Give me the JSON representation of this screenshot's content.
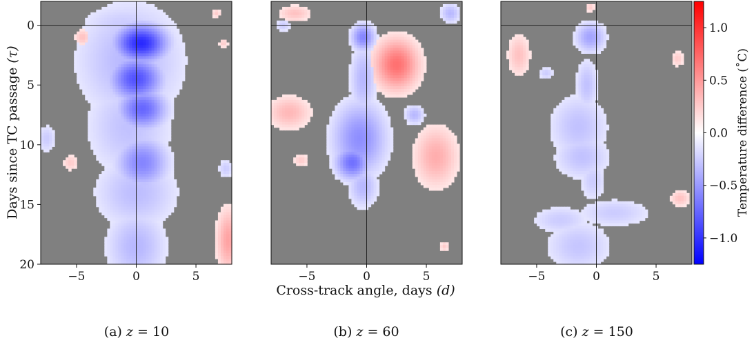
{
  "figure": {
    "shared_xlabel": "Cross-track angle, days",
    "shared_xlabel_sym": "(d)",
    "ylabel": "Days since TC passage",
    "ylabel_sym": "(τ)",
    "colorbar_label": "Temperature difference (˚C)",
    "masked_color": "#808080",
    "positive_color": "#ff0000",
    "negative_color": "#0000ff"
  },
  "captions": [
    {
      "prefix": "(a) ",
      "var": "z",
      "eq": " = 10"
    },
    {
      "prefix": "(b) ",
      "var": "z",
      "eq": " = 60"
    },
    {
      "prefix": "(c) ",
      "var": "z",
      "eq": " = 150"
    }
  ],
  "chart_data": [
    {
      "type": "heatmap",
      "panel": "(a) z = 10",
      "xlim": [
        -8,
        8
      ],
      "ylim": [
        20,
        -2
      ],
      "xticks": [
        -5,
        0,
        5
      ],
      "yticks": [
        0,
        5,
        10,
        15,
        20
      ],
      "crosshair": {
        "x": 0,
        "y": 0
      },
      "blobs": [
        {
          "x": -1,
          "y": 0,
          "sx": 2.8,
          "sy": 1.4,
          "v": -0.25
        },
        {
          "x": 0.4,
          "y": 1.5,
          "sx": 1.5,
          "sy": 1.1,
          "v": -1.05
        },
        {
          "x": 0,
          "y": 4.5,
          "sx": 1.5,
          "sy": 1.3,
          "v": -0.85
        },
        {
          "x": 0.5,
          "y": 7,
          "sx": 1.4,
          "sy": 1.2,
          "v": -0.75
        },
        {
          "x": -0.5,
          "y": 3,
          "sx": 3.2,
          "sy": 3.5,
          "v": -0.35
        },
        {
          "x": -0.6,
          "y": 8.5,
          "sx": 2.6,
          "sy": 3,
          "v": -0.3
        },
        {
          "x": 0.5,
          "y": 11.5,
          "sx": 1.5,
          "sy": 1.5,
          "v": -0.6
        },
        {
          "x": 0,
          "y": 14,
          "sx": 2.5,
          "sy": 2.2,
          "v": -0.32
        },
        {
          "x": 0,
          "y": 18.5,
          "sx": 1.8,
          "sy": 2.2,
          "v": -0.35
        },
        {
          "x": -4.5,
          "y": 1,
          "sx": 0.5,
          "sy": 0.5,
          "v": 0.3
        },
        {
          "x": -7.5,
          "y": 9.5,
          "sx": 0.6,
          "sy": 0.9,
          "v": -0.25
        },
        {
          "x": -5.5,
          "y": 11.5,
          "sx": 0.5,
          "sy": 0.5,
          "v": 0.25
        },
        {
          "x": 7.7,
          "y": 18,
          "sx": 0.7,
          "sy": 1.9,
          "v": 0.45
        },
        {
          "x": 7.5,
          "y": 12,
          "sx": 0.5,
          "sy": 0.6,
          "v": -0.25
        },
        {
          "x": 7.3,
          "y": 1.5,
          "sx": 0.3,
          "sy": 0.3,
          "v": 0.25
        },
        {
          "x": 6.7,
          "y": -1,
          "sx": 0.3,
          "sy": 0.3,
          "v": 0.25
        }
      ]
    },
    {
      "type": "heatmap",
      "panel": "(b) z = 60",
      "xlim": [
        -8,
        8
      ],
      "ylim": [
        20,
        -2
      ],
      "xticks": [
        -5,
        0,
        5
      ],
      "yticks": [
        0,
        5,
        10,
        15,
        20
      ],
      "crosshair": {
        "x": 0,
        "y": 0
      },
      "blobs": [
        {
          "x": -0.3,
          "y": 1,
          "sx": 0.7,
          "sy": 0.8,
          "v": -0.6
        },
        {
          "x": -0.3,
          "y": 4.5,
          "sx": 0.8,
          "sy": 2.2,
          "v": -0.35
        },
        {
          "x": -0.6,
          "y": 9.5,
          "sx": 1.6,
          "sy": 2.2,
          "v": -0.55
        },
        {
          "x": -1.2,
          "y": 11.5,
          "sx": 1,
          "sy": 1,
          "v": -0.7
        },
        {
          "x": -0.3,
          "y": 13.5,
          "sx": 0.9,
          "sy": 1.3,
          "v": -0.35
        },
        {
          "x": 2.5,
          "y": 3.3,
          "sx": 1.3,
          "sy": 1.5,
          "v": 0.7
        },
        {
          "x": -6,
          "y": -1,
          "sx": 1,
          "sy": 0.5,
          "v": 0.3
        },
        {
          "x": -7,
          "y": 0,
          "sx": 0.5,
          "sy": 0.4,
          "v": -0.25
        },
        {
          "x": -6.5,
          "y": 7.3,
          "sx": 1.3,
          "sy": 1,
          "v": 0.35
        },
        {
          "x": -5.5,
          "y": 11.3,
          "sx": 0.5,
          "sy": 0.4,
          "v": 0.25
        },
        {
          "x": 4,
          "y": 7.5,
          "sx": 0.6,
          "sy": 0.6,
          "v": -0.35
        },
        {
          "x": 5.8,
          "y": 11,
          "sx": 1.3,
          "sy": 1.8,
          "v": 0.4
        },
        {
          "x": 7,
          "y": -1,
          "sx": 0.6,
          "sy": 0.6,
          "v": -0.35
        },
        {
          "x": 6.5,
          "y": 18.5,
          "sx": 0.3,
          "sy": 0.3,
          "v": 0.25
        }
      ]
    },
    {
      "type": "heatmap",
      "panel": "(c) z = 150",
      "xlim": [
        -8,
        8
      ],
      "ylim": [
        20,
        -2
      ],
      "xticks": [
        -5,
        0,
        5
      ],
      "yticks": [
        0,
        5,
        10,
        15,
        20
      ],
      "crosshair": {
        "x": 0,
        "y": 0
      },
      "blobs": [
        {
          "x": -0.5,
          "y": 1,
          "sx": 0.9,
          "sy": 0.9,
          "v": -0.45
        },
        {
          "x": -0.8,
          "y": 5,
          "sx": 0.7,
          "sy": 1.6,
          "v": -0.3
        },
        {
          "x": -1.5,
          "y": 8.5,
          "sx": 1.8,
          "sy": 2,
          "v": -0.3
        },
        {
          "x": -1.2,
          "y": 11,
          "sx": 1.7,
          "sy": 1.4,
          "v": -0.3
        },
        {
          "x": -0.3,
          "y": 13,
          "sx": 0.8,
          "sy": 1.3,
          "v": -0.25
        },
        {
          "x": 1.5,
          "y": 15.7,
          "sx": 2.3,
          "sy": 0.9,
          "v": -0.25
        },
        {
          "x": -3,
          "y": 16.3,
          "sx": 1.8,
          "sy": 0.9,
          "v": -0.25
        },
        {
          "x": -1.5,
          "y": 18.5,
          "sx": 2,
          "sy": 1.6,
          "v": -0.28
        },
        {
          "x": -6.5,
          "y": 2.5,
          "sx": 0.7,
          "sy": 1.3,
          "v": 0.3
        },
        {
          "x": -4.2,
          "y": 4,
          "sx": 0.5,
          "sy": 0.4,
          "v": -0.25
        },
        {
          "x": 6.8,
          "y": 2.8,
          "sx": 0.4,
          "sy": 0.5,
          "v": 0.25
        },
        {
          "x": 7,
          "y": 14.5,
          "sx": 0.6,
          "sy": 0.5,
          "v": 0.3
        },
        {
          "x": -0.5,
          "y": -1.5,
          "sx": 0.3,
          "sy": 0.3,
          "v": 0.25
        }
      ]
    }
  ],
  "colorbar": {
    "vmin": -1.25,
    "vmax": 1.25,
    "ticks": [
      "-1.0",
      "-0.5",
      "0.0",
      "0.5",
      "1.0"
    ]
  }
}
